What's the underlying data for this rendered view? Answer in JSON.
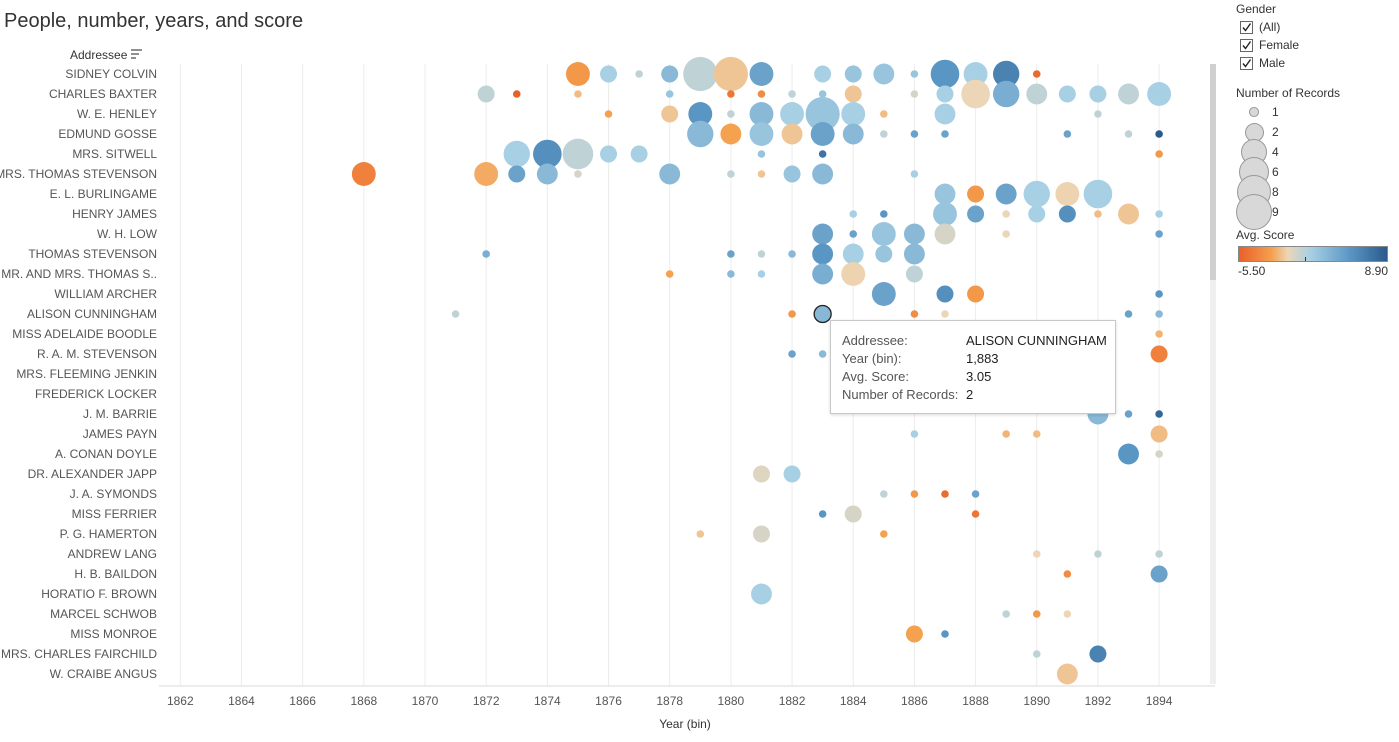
{
  "title": "People, number, years, and score",
  "chart_data": {
    "type": "scatter",
    "title": "People, number, years, and score",
    "xlabel": "Year (bin)",
    "ylabel": "Addressee",
    "xlim": [
      1861,
      1895
    ],
    "xticks": [
      1862,
      1864,
      1866,
      1868,
      1870,
      1872,
      1874,
      1876,
      1878,
      1880,
      1882,
      1884,
      1886,
      1888,
      1890,
      1892,
      1894
    ],
    "addressees": [
      "SIDNEY COLVIN",
      "CHARLES BAXTER",
      "W. E. HENLEY",
      "EDMUND GOSSE",
      "MRS. SITWELL",
      "MRS. THOMAS STEVENSON",
      "E. L. BURLINGAME",
      "HENRY JAMES",
      "W. H. LOW",
      "THOMAS STEVENSON",
      "MR. AND MRS. THOMAS S..",
      "WILLIAM ARCHER",
      "ALISON CUNNINGHAM",
      "MISS ADELAIDE BOODLE",
      "R. A. M. STEVENSON",
      "MRS. FLEEMING JENKIN",
      "FREDERICK LOCKER",
      "J. M. BARRIE",
      "JAMES PAYN",
      "A. CONAN DOYLE",
      "DR. ALEXANDER JAPP",
      "J. A. SYMONDS",
      "MISS FERRIER",
      "P. G. HAMERTON",
      "ANDREW LANG",
      "H. B. BAILDON",
      "HORATIO F. BROWN",
      "MARCEL SCHWOB",
      "MISS MONROE",
      "MRS. CHARLES FAIRCHILD",
      "W. CRAIBE ANGUS"
    ],
    "points": [
      {
        "a": 0,
        "year": 1875,
        "records": 4,
        "score": -3
      },
      {
        "a": 0,
        "year": 1876,
        "records": 2,
        "score": 2
      },
      {
        "a": 0,
        "year": 1877,
        "records": 1,
        "score": 1.5
      },
      {
        "a": 0,
        "year": 1878,
        "records": 2,
        "score": 3
      },
      {
        "a": 0,
        "year": 1879,
        "records": 9,
        "score": 1.5
      },
      {
        "a": 0,
        "year": 1880,
        "records": 9,
        "score": -0.5
      },
      {
        "a": 0,
        "year": 1881,
        "records": 4,
        "score": 4
      },
      {
        "a": 0,
        "year": 1883,
        "records": 2,
        "score": 2
      },
      {
        "a": 0,
        "year": 1884,
        "records": 2,
        "score": 2.5
      },
      {
        "a": 0,
        "year": 1885,
        "records": 3,
        "score": 2.5
      },
      {
        "a": 0,
        "year": 1886,
        "records": 1,
        "score": 2.5
      },
      {
        "a": 0,
        "year": 1887,
        "records": 6,
        "score": 4.5
      },
      {
        "a": 0,
        "year": 1888,
        "records": 4,
        "score": 2
      },
      {
        "a": 0,
        "year": 1889,
        "records": 5,
        "score": 6
      },
      {
        "a": 0,
        "year": 1890,
        "records": 1,
        "score": -5
      },
      {
        "a": 1,
        "year": 1872,
        "records": 2,
        "score": 1.5
      },
      {
        "a": 1,
        "year": 1873,
        "records": 1,
        "score": -5.5
      },
      {
        "a": 1,
        "year": 1875,
        "records": 1,
        "score": -1
      },
      {
        "a": 1,
        "year": 1878,
        "records": 1,
        "score": 2.5
      },
      {
        "a": 1,
        "year": 1880,
        "records": 1,
        "score": -4.5
      },
      {
        "a": 1,
        "year": 1881,
        "records": 1,
        "score": -3.5
      },
      {
        "a": 1,
        "year": 1882,
        "records": 1,
        "score": 1.5
      },
      {
        "a": 1,
        "year": 1883,
        "records": 1,
        "score": 2.5
      },
      {
        "a": 1,
        "year": 1884,
        "records": 2,
        "score": -0.5
      },
      {
        "a": 1,
        "year": 1886,
        "records": 1,
        "score": 1
      },
      {
        "a": 1,
        "year": 1887,
        "records": 2,
        "score": 2
      },
      {
        "a": 1,
        "year": 1888,
        "records": 6,
        "score": 0.5
      },
      {
        "a": 1,
        "year": 1889,
        "records": 5,
        "score": 3.5
      },
      {
        "a": 1,
        "year": 1890,
        "records": 3,
        "score": 1.5
      },
      {
        "a": 1,
        "year": 1891,
        "records": 2,
        "score": 2
      },
      {
        "a": 1,
        "year": 1892,
        "records": 2,
        "score": 2
      },
      {
        "a": 1,
        "year": 1893,
        "records": 3,
        "score": 1.5
      },
      {
        "a": 1,
        "year": 1894,
        "records": 4,
        "score": 2
      },
      {
        "a": 2,
        "year": 1876,
        "records": 1,
        "score": -2.5
      },
      {
        "a": 2,
        "year": 1878,
        "records": 2,
        "score": -0.5
      },
      {
        "a": 2,
        "year": 1879,
        "records": 4,
        "score": 4.5
      },
      {
        "a": 2,
        "year": 1880,
        "records": 1,
        "score": 1.5
      },
      {
        "a": 2,
        "year": 1881,
        "records": 4,
        "score": 3
      },
      {
        "a": 2,
        "year": 1882,
        "records": 4,
        "score": 2
      },
      {
        "a": 2,
        "year": 1883,
        "records": 9,
        "score": 2.5
      },
      {
        "a": 2,
        "year": 1884,
        "records": 4,
        "score": 2
      },
      {
        "a": 2,
        "year": 1885,
        "records": 1,
        "score": -1
      },
      {
        "a": 2,
        "year": 1887,
        "records": 3,
        "score": 2
      },
      {
        "a": 2,
        "year": 1892,
        "records": 1,
        "score": 1.5
      },
      {
        "a": 3,
        "year": 1879,
        "records": 5,
        "score": 3
      },
      {
        "a": 3,
        "year": 1880,
        "records": 3,
        "score": -2.5
      },
      {
        "a": 3,
        "year": 1881,
        "records": 4,
        "score": 2.5
      },
      {
        "a": 3,
        "year": 1882,
        "records": 3,
        "score": -0.5
      },
      {
        "a": 3,
        "year": 1883,
        "records": 4,
        "score": 4
      },
      {
        "a": 3,
        "year": 1884,
        "records": 3,
        "score": 3
      },
      {
        "a": 3,
        "year": 1885,
        "records": 1,
        "score": 1.5
      },
      {
        "a": 3,
        "year": 1886,
        "records": 1,
        "score": 4
      },
      {
        "a": 3,
        "year": 1887,
        "records": 1,
        "score": 4
      },
      {
        "a": 3,
        "year": 1891,
        "records": 1,
        "score": 4
      },
      {
        "a": 3,
        "year": 1893,
        "records": 1,
        "score": 1.5
      },
      {
        "a": 3,
        "year": 1894,
        "records": 1,
        "score": 8.9
      },
      {
        "a": 4,
        "year": 1873,
        "records": 5,
        "score": 2
      },
      {
        "a": 4,
        "year": 1874,
        "records": 6,
        "score": 5
      },
      {
        "a": 4,
        "year": 1875,
        "records": 7,
        "score": 1.5
      },
      {
        "a": 4,
        "year": 1876,
        "records": 2,
        "score": 2
      },
      {
        "a": 4,
        "year": 1877,
        "records": 2,
        "score": 2
      },
      {
        "a": 4,
        "year": 1881,
        "records": 1,
        "score": 2.5
      },
      {
        "a": 4,
        "year": 1883,
        "records": 1,
        "score": 7
      },
      {
        "a": 4,
        "year": 1894,
        "records": 1,
        "score": -3
      },
      {
        "a": 5,
        "year": 1868,
        "records": 4,
        "score": -4
      },
      {
        "a": 5,
        "year": 1872,
        "records": 4,
        "score": -2
      },
      {
        "a": 5,
        "year": 1873,
        "records": 2,
        "score": 4
      },
      {
        "a": 5,
        "year": 1874,
        "records": 3,
        "score": 3
      },
      {
        "a": 5,
        "year": 1875,
        "records": 1,
        "score": 1
      },
      {
        "a": 5,
        "year": 1878,
        "records": 3,
        "score": 3
      },
      {
        "a": 5,
        "year": 1880,
        "records": 1,
        "score": 1.5
      },
      {
        "a": 5,
        "year": 1881,
        "records": 1,
        "score": -0.5
      },
      {
        "a": 5,
        "year": 1882,
        "records": 2,
        "score": 2.5
      },
      {
        "a": 5,
        "year": 1883,
        "records": 3,
        "score": 3
      },
      {
        "a": 5,
        "year": 1886,
        "records": 1,
        "score": 2
      },
      {
        "a": 6,
        "year": 1887,
        "records": 3,
        "score": 2.5
      },
      {
        "a": 6,
        "year": 1888,
        "records": 2,
        "score": -3
      },
      {
        "a": 6,
        "year": 1889,
        "records": 3,
        "score": 4
      },
      {
        "a": 6,
        "year": 1890,
        "records": 5,
        "score": 2
      },
      {
        "a": 6,
        "year": 1891,
        "records": 4,
        "score": 0.3
      },
      {
        "a": 6,
        "year": 1892,
        "records": 6,
        "score": 2
      },
      {
        "a": 7,
        "year": 1884,
        "records": 1,
        "score": 2
      },
      {
        "a": 7,
        "year": 1885,
        "records": 1,
        "score": 4.5
      },
      {
        "a": 7,
        "year": 1887,
        "records": 4,
        "score": 2.5
      },
      {
        "a": 7,
        "year": 1888,
        "records": 2,
        "score": 4
      },
      {
        "a": 7,
        "year": 1889,
        "records": 1,
        "score": 0.5
      },
      {
        "a": 7,
        "year": 1890,
        "records": 2,
        "score": 2
      },
      {
        "a": 7,
        "year": 1891,
        "records": 2,
        "score": 5
      },
      {
        "a": 7,
        "year": 1892,
        "records": 1,
        "score": -1
      },
      {
        "a": 7,
        "year": 1893,
        "records": 3,
        "score": -0.5
      },
      {
        "a": 7,
        "year": 1894,
        "records": 1,
        "score": 2
      },
      {
        "a": 8,
        "year": 1883,
        "records": 3,
        "score": 4
      },
      {
        "a": 8,
        "year": 1884,
        "records": 1,
        "score": 4
      },
      {
        "a": 8,
        "year": 1885,
        "records": 4,
        "score": 2.5
      },
      {
        "a": 8,
        "year": 1886,
        "records": 3,
        "score": 3
      },
      {
        "a": 8,
        "year": 1887,
        "records": 3,
        "score": 1
      },
      {
        "a": 8,
        "year": 1889,
        "records": 1,
        "score": 0.5
      },
      {
        "a": 8,
        "year": 1894,
        "records": 1,
        "score": 4
      },
      {
        "a": 9,
        "year": 1872,
        "records": 1,
        "score": 3.5
      },
      {
        "a": 9,
        "year": 1880,
        "records": 1,
        "score": 4
      },
      {
        "a": 9,
        "year": 1881,
        "records": 1,
        "score": 1.5
      },
      {
        "a": 9,
        "year": 1882,
        "records": 1,
        "score": 3
      },
      {
        "a": 9,
        "year": 1883,
        "records": 3,
        "score": 4.5
      },
      {
        "a": 9,
        "year": 1884,
        "records": 3,
        "score": 2
      },
      {
        "a": 9,
        "year": 1885,
        "records": 2,
        "score": 2.5
      },
      {
        "a": 9,
        "year": 1886,
        "records": 3,
        "score": 3
      },
      {
        "a": 10,
        "year": 1878,
        "records": 1,
        "score": -2.5
      },
      {
        "a": 10,
        "year": 1880,
        "records": 1,
        "score": 3
      },
      {
        "a": 10,
        "year": 1881,
        "records": 1,
        "score": 2
      },
      {
        "a": 10,
        "year": 1883,
        "records": 3,
        "score": 3.5
      },
      {
        "a": 10,
        "year": 1884,
        "records": 4,
        "score": 0.3
      },
      {
        "a": 10,
        "year": 1886,
        "records": 2,
        "score": 1.5
      },
      {
        "a": 11,
        "year": 1885,
        "records": 4,
        "score": 4
      },
      {
        "a": 11,
        "year": 1887,
        "records": 2,
        "score": 5
      },
      {
        "a": 11,
        "year": 1888,
        "records": 2,
        "score": -3
      },
      {
        "a": 11,
        "year": 1894,
        "records": 1,
        "score": 4.5
      },
      {
        "a": 12,
        "year": 1871,
        "records": 1,
        "score": 1.5
      },
      {
        "a": 12,
        "year": 1882,
        "records": 1,
        "score": -3
      },
      {
        "a": 12,
        "year": 1883,
        "records": 2,
        "score": 3.05
      },
      {
        "a": 12,
        "year": 1886,
        "records": 1,
        "score": -3.5
      },
      {
        "a": 12,
        "year": 1887,
        "records": 1,
        "score": 0.5
      },
      {
        "a": 12,
        "year": 1893,
        "records": 1,
        "score": 4
      },
      {
        "a": 12,
        "year": 1894,
        "records": 1,
        "score": 3
      },
      {
        "a": 13,
        "year": 1894,
        "records": 1,
        "score": -1.5
      },
      {
        "a": 14,
        "year": 1882,
        "records": 1,
        "score": 4
      },
      {
        "a": 14,
        "year": 1883,
        "records": 1,
        "score": 3
      },
      {
        "a": 14,
        "year": 1894,
        "records": 2,
        "score": -4
      },
      {
        "a": 17,
        "year": 1892,
        "records": 3,
        "score": 3
      },
      {
        "a": 17,
        "year": 1893,
        "records": 1,
        "score": 4
      },
      {
        "a": 17,
        "year": 1894,
        "records": 1,
        "score": 8
      },
      {
        "a": 18,
        "year": 1886,
        "records": 1,
        "score": 2
      },
      {
        "a": 18,
        "year": 1889,
        "records": 1,
        "score": -1.5
      },
      {
        "a": 18,
        "year": 1890,
        "records": 1,
        "score": -1
      },
      {
        "a": 18,
        "year": 1894,
        "records": 2,
        "score": -1
      },
      {
        "a": 19,
        "year": 1893,
        "records": 3,
        "score": 4.5
      },
      {
        "a": 19,
        "year": 1894,
        "records": 1,
        "score": 1
      },
      {
        "a": 20,
        "year": 1881,
        "records": 2,
        "score": 0.8
      },
      {
        "a": 20,
        "year": 1882,
        "records": 2,
        "score": 2
      },
      {
        "a": 21,
        "year": 1885,
        "records": 1,
        "score": 1.5
      },
      {
        "a": 21,
        "year": 1886,
        "records": 1,
        "score": -3
      },
      {
        "a": 21,
        "year": 1887,
        "records": 1,
        "score": -5
      },
      {
        "a": 21,
        "year": 1888,
        "records": 1,
        "score": 4
      },
      {
        "a": 22,
        "year": 1883,
        "records": 1,
        "score": 4.5
      },
      {
        "a": 22,
        "year": 1884,
        "records": 2,
        "score": 1
      },
      {
        "a": 22,
        "year": 1888,
        "records": 1,
        "score": -4.5
      },
      {
        "a": 23,
        "year": 1879,
        "records": 1,
        "score": -0.5
      },
      {
        "a": 23,
        "year": 1881,
        "records": 2,
        "score": 1
      },
      {
        "a": 23,
        "year": 1885,
        "records": 1,
        "score": -2.5
      },
      {
        "a": 24,
        "year": 1890,
        "records": 1,
        "score": 0.5
      },
      {
        "a": 24,
        "year": 1892,
        "records": 1,
        "score": 1.5
      },
      {
        "a": 24,
        "year": 1894,
        "records": 1,
        "score": 1.5
      },
      {
        "a": 25,
        "year": 1891,
        "records": 1,
        "score": -3.5
      },
      {
        "a": 25,
        "year": 1894,
        "records": 2,
        "score": 4
      },
      {
        "a": 26,
        "year": 1881,
        "records": 3,
        "score": 2
      },
      {
        "a": 27,
        "year": 1889,
        "records": 1,
        "score": 1.5
      },
      {
        "a": 27,
        "year": 1890,
        "records": 1,
        "score": -3
      },
      {
        "a": 27,
        "year": 1891,
        "records": 1,
        "score": 0.5
      },
      {
        "a": 28,
        "year": 1886,
        "records": 2,
        "score": -2.5
      },
      {
        "a": 28,
        "year": 1887,
        "records": 1,
        "score": 4.5
      },
      {
        "a": 29,
        "year": 1890,
        "records": 1,
        "score": 1.5
      },
      {
        "a": 29,
        "year": 1892,
        "records": 2,
        "score": 6
      },
      {
        "a": 30,
        "year": 1891,
        "records": 3,
        "score": -0.5
      }
    ],
    "highlight": {
      "a": 12,
      "year": 1883
    },
    "size_legend_title": "Number of Records",
    "size_legend": [
      1,
      2,
      4,
      6,
      8,
      9
    ],
    "color_legend_title": "Avg. Score",
    "color_min": -5.5,
    "color_max": 8.9,
    "color_min_label": "-5.50",
    "color_max_label": "8.90",
    "colors": {
      "neg_dark": "#e8602a",
      "neg": "#f5a04d",
      "neutral": "#ecd6b7",
      "pos_light": "#a8d0e4",
      "pos": "#5a96c4",
      "pos_dark": "#2a5b8c"
    }
  },
  "header": {
    "addressee_label": "Addressee"
  },
  "filter": {
    "title": "Gender",
    "options": [
      {
        "label": "(All)",
        "checked": true
      },
      {
        "label": "Female",
        "checked": true
      },
      {
        "label": "Male",
        "checked": true
      }
    ]
  },
  "tooltip": {
    "addressee_key": "Addressee:",
    "addressee_val": "ALISON CUNNINGHAM",
    "year_key": "Year (bin):",
    "year_val": "1,883",
    "score_key": "Avg. Score:",
    "score_val": "3.05",
    "records_key": "Number of Records:",
    "records_val": "2"
  }
}
